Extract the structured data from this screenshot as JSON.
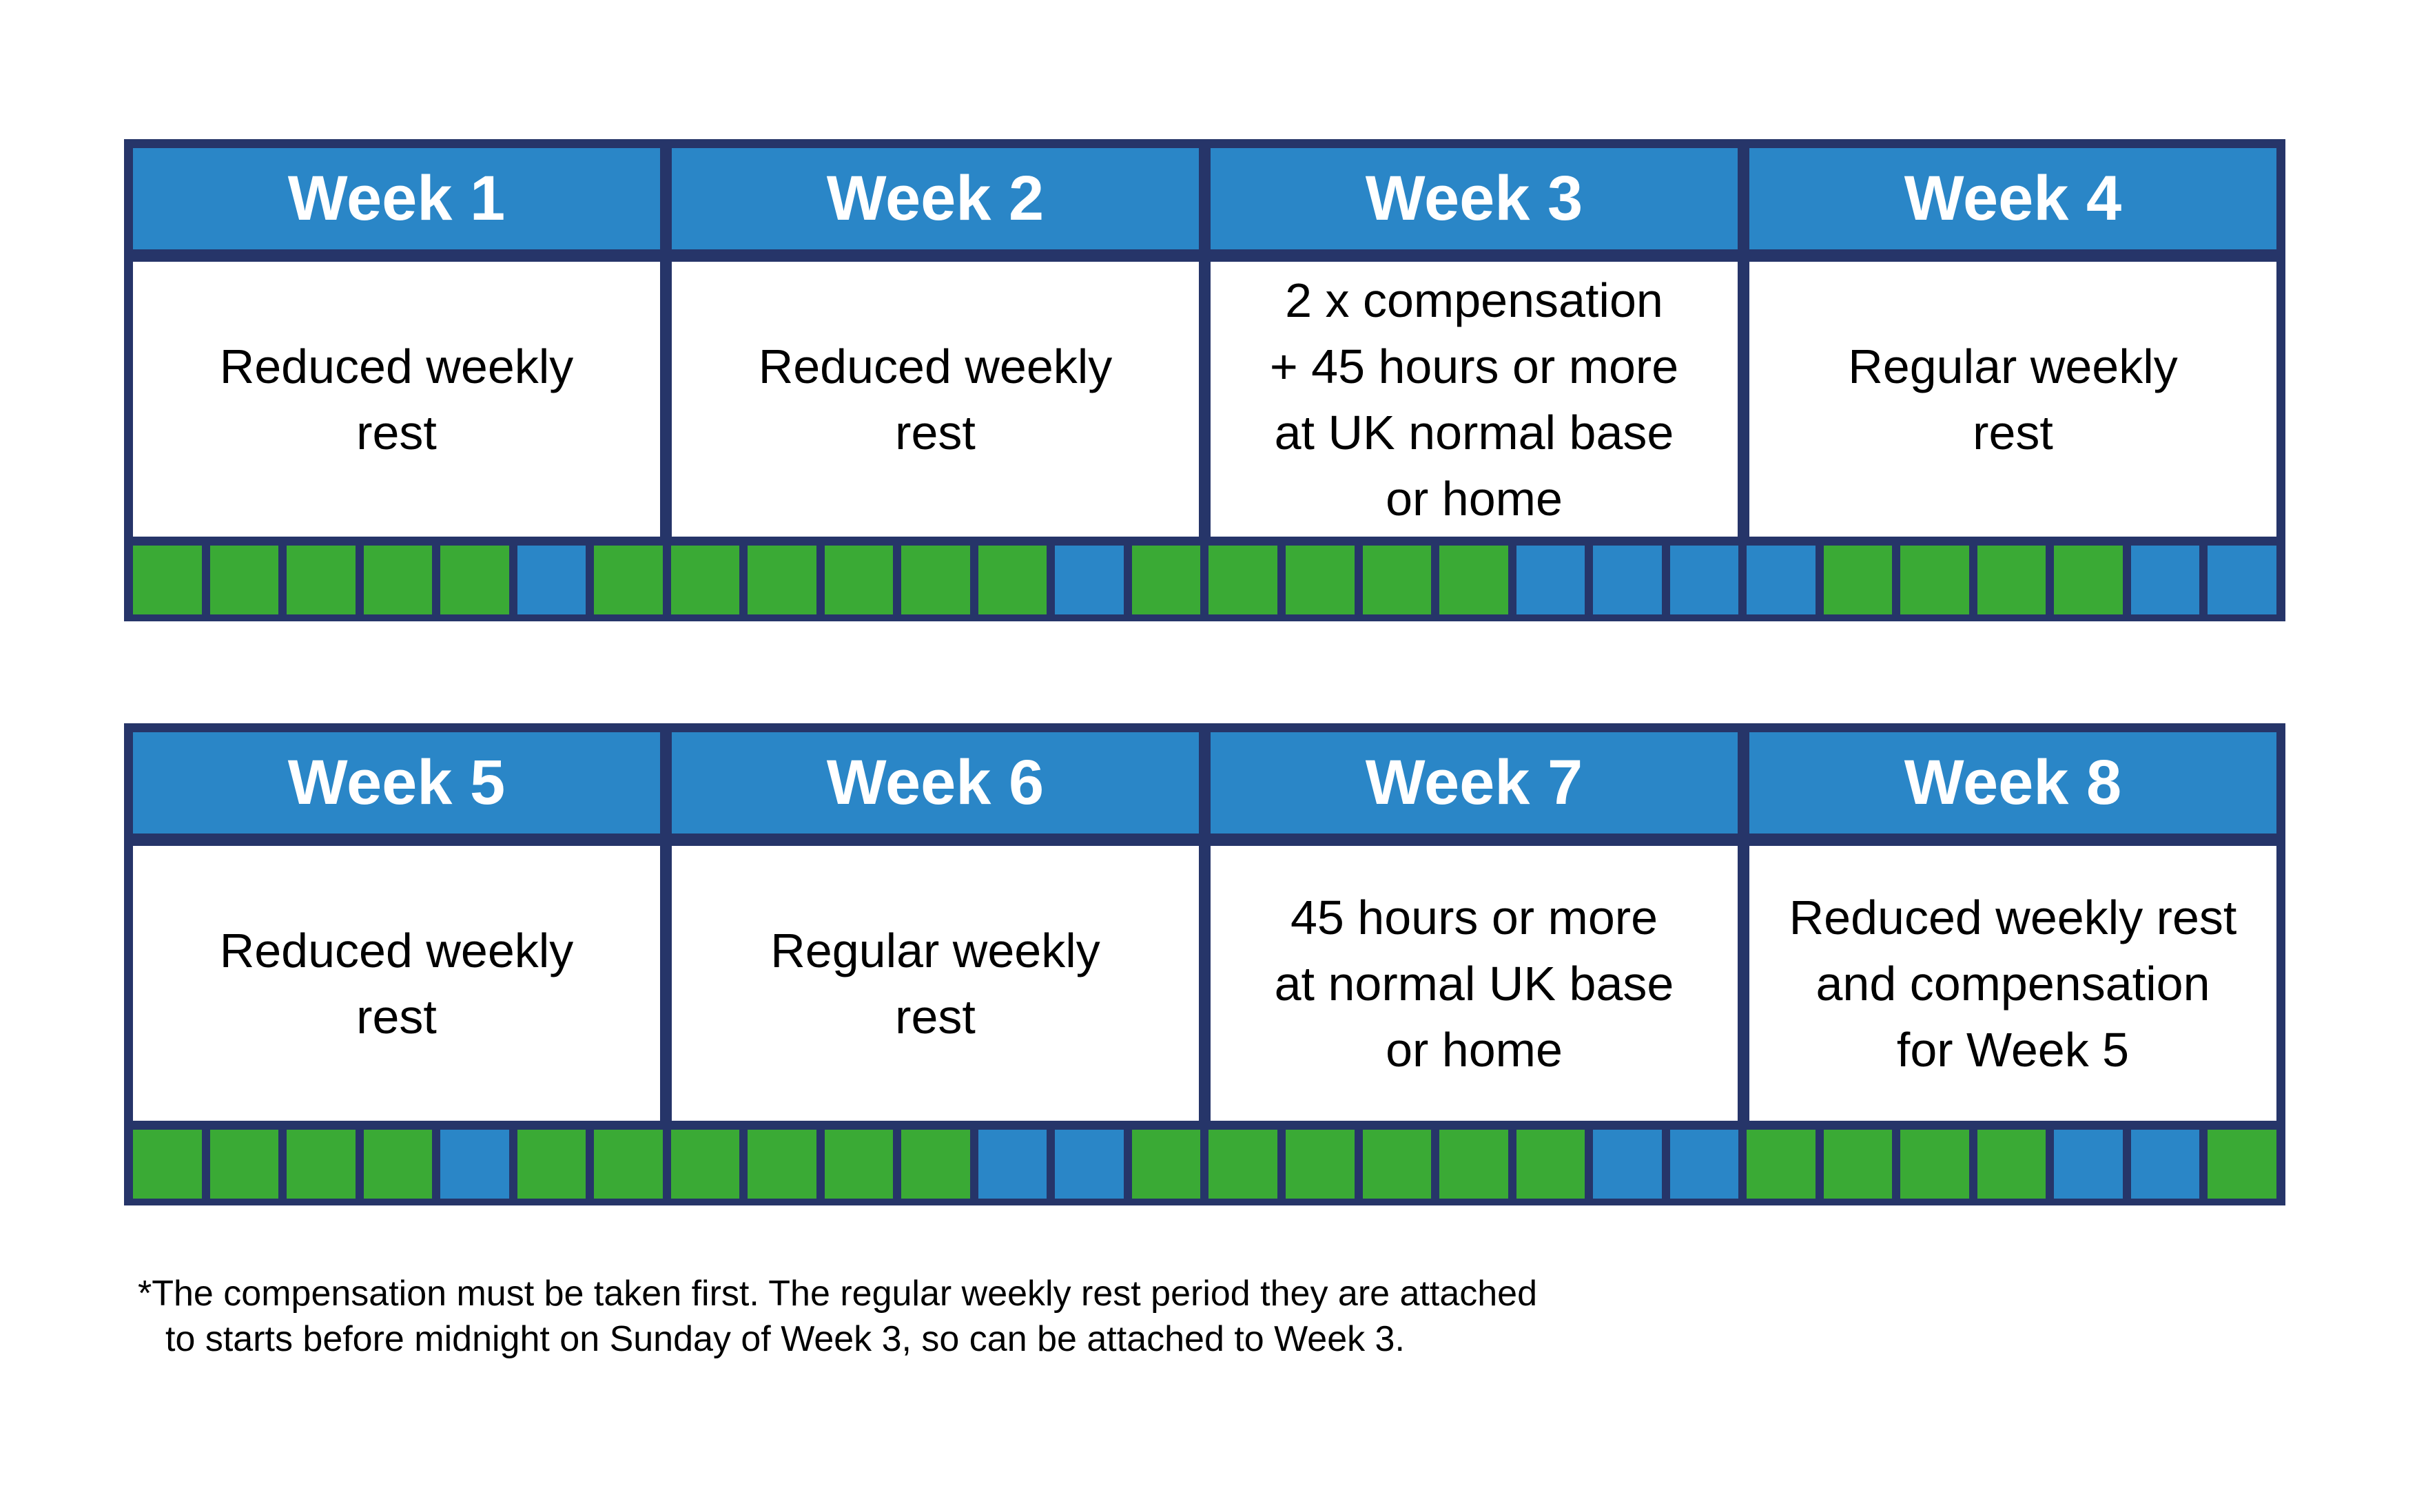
{
  "colors": {
    "border_navy": "#263569",
    "header_blue": "#2a86c7",
    "day_work_green": "#3aaa35",
    "day_rest_blue": "#2a86c7",
    "background": "#ffffff",
    "header_text": "#ffffff",
    "body_text": "#000000"
  },
  "tables": [
    {
      "name": "weeks-1-4-table",
      "weeks": [
        {
          "title": "Week 1",
          "lines": [
            "Reduced weekly",
            "rest"
          ],
          "days": [
            "work",
            "work",
            "work",
            "work",
            "work",
            "rest",
            "work"
          ]
        },
        {
          "title": "Week 2",
          "lines": [
            "Reduced weekly",
            "rest"
          ],
          "days": [
            "work",
            "work",
            "work",
            "work",
            "work",
            "rest",
            "work"
          ]
        },
        {
          "title": "Week 3",
          "lines": [
            "2 x compensation",
            "+ 45 hours or more",
            "at UK normal base",
            "or home"
          ],
          "days": [
            "work",
            "work",
            "work",
            "work",
            "rest",
            "rest",
            "rest"
          ]
        },
        {
          "title": "Week 4",
          "lines": [
            "Regular weekly",
            "rest"
          ],
          "days": [
            "rest",
            "work",
            "work",
            "work",
            "work",
            "rest",
            "rest"
          ]
        }
      ]
    },
    {
      "name": "weeks-5-8-table",
      "weeks": [
        {
          "title": "Week 5",
          "lines": [
            "Reduced weekly",
            "rest"
          ],
          "days": [
            "work",
            "work",
            "work",
            "work",
            "rest",
            "work",
            "work"
          ]
        },
        {
          "title": "Week 6",
          "lines": [
            "Regular weekly",
            "rest"
          ],
          "days": [
            "work",
            "work",
            "work",
            "work",
            "rest",
            "rest",
            "work"
          ]
        },
        {
          "title": "Week 7",
          "lines": [
            "45 hours or more",
            "at normal UK base",
            "or home"
          ],
          "days": [
            "work",
            "work",
            "work",
            "work",
            "work",
            "rest",
            "rest"
          ]
        },
        {
          "title": "Week 8",
          "lines": [
            "Reduced weekly rest",
            "and compensation",
            "for Week 5"
          ],
          "days": [
            "work",
            "work",
            "work",
            "work",
            "rest",
            "rest",
            "work"
          ]
        }
      ]
    }
  ],
  "footnote": {
    "lines": [
      "*The compensation must be taken first. The regular weekly rest period they are attached",
      "to starts before midnight on Sunday of Week 3, so can be attached to Week 3."
    ]
  }
}
